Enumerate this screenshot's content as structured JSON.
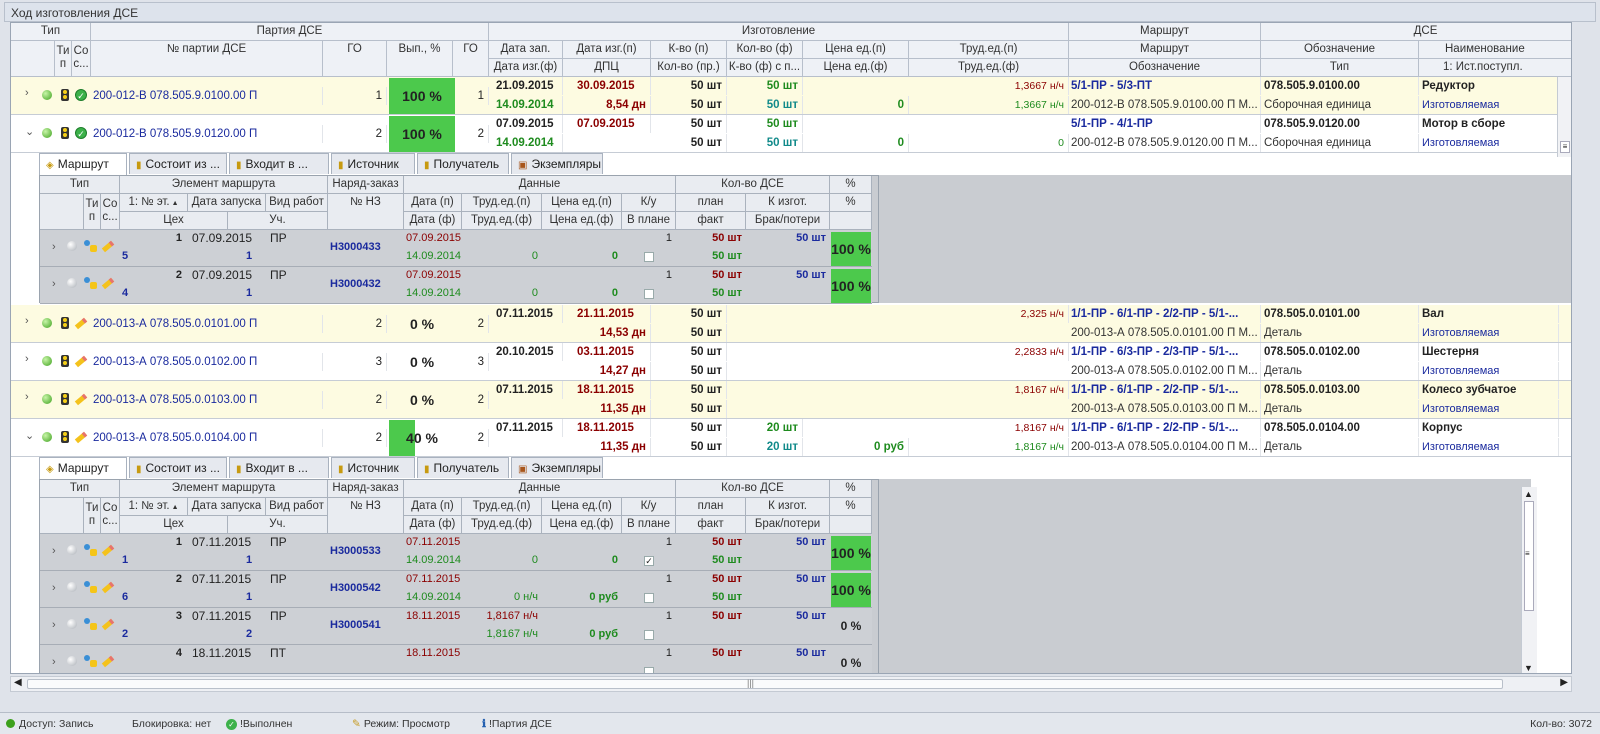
{
  "window": {
    "title": "Ход изготовления ДСЕ"
  },
  "header": {
    "groups": {
      "tip": "Тип",
      "partiya": "Партия ДСЕ",
      "izgotovlenie": "Изготовление",
      "marshrut": "Маршрут",
      "dse": "ДСЕ"
    },
    "cols": {
      "tip_p": "Ти п",
      "sost": "Со с...",
      "nomer": "№ партии ДСЕ",
      "go": "ГО",
      "vyp": "Вып., %",
      "go2": "ГО",
      "data_zap": "Дата зап.",
      "data_izg_p": "Дата изг.(п)",
      "kvo_p": "К-во (п)",
      "kvo_f": "Кол-во (ф)",
      "cena_p": "Цена ед.(п)",
      "trud_p": "Труд.ед.(п)",
      "marshrut": "Маршрут",
      "oboz": "Обозначение",
      "naim": "Наименование",
      "data_izg_f": "Дата изг.(ф)",
      "dpc": "ДПЦ",
      "kvo_pr": "Кол-во (пр.)",
      "kvo_fs": "К-во (ф) с п...",
      "cena_f": "Цена ед.(ф)",
      "trud_f": "Труд.ед.(ф)",
      "oboz2": "Обозначение",
      "tip2": "Тип",
      "ist": "1: Ист.поступл."
    }
  },
  "rows": [
    {
      "num": "200-012-В 078.505.9.0100.00 П",
      "go": "1",
      "pct": 100,
      "pct_label": "100 %",
      "go2": "1",
      "data_zap": "21.09.2015",
      "data_izg": "30.09.2015",
      "kvo_p": "50 шт",
      "kvo_f": "50 шт",
      "cena_p": "",
      "trud_p": "1,3667 н/ч",
      "route": "5/1-ПР - 5/3-ПТ",
      "oboz": "078.505.9.0100.00",
      "naim": "Редуктор",
      "data_izg_f": "14.09.2014",
      "dpc": "8,54 дн",
      "kvo_pr": "50 шт",
      "kvo_fs": "50 шт",
      "cena_f": "0",
      "trud_f": "1,3667 н/ч",
      "oboz2": "200-012-В 078.505.9.0100.00 П М...",
      "tip2": "Сборочная единица",
      "ist": "Изготовляемая",
      "icon": "done-check-icon",
      "expanded": false
    },
    {
      "num": "200-012-В 078.505.9.0120.00 П",
      "go": "2",
      "pct": 100,
      "pct_label": "100 %",
      "go2": "2",
      "data_zap": "07.09.2015",
      "data_izg": "07.09.2015",
      "kvo_p": "50 шт",
      "kvo_f": "50 шт",
      "cena_p": "",
      "trud_p": "",
      "route": "5/1-ПР - 4/1-ПР",
      "oboz": "078.505.9.0120.00",
      "naim": "Мотор в сборе",
      "data_izg_f": "14.09.2014",
      "dpc": "",
      "kvo_pr": "50 шт",
      "kvo_fs": "50 шт",
      "cena_f": "0",
      "trud_f": "0",
      "oboz2": "200-012-В 078.505.9.0120.00 П М...",
      "tip2": "Сборочная единица",
      "ist": "Изготовляемая",
      "icon": "done-check-icon",
      "expanded": true
    },
    {
      "num": "200-013-А 078.505.0.0101.00 П",
      "go": "2",
      "pct": 0,
      "pct_label": "0 %",
      "go2": "2",
      "data_zap": "07.11.2015",
      "data_izg": "21.11.2015",
      "kvo_p": "50 шт",
      "kvo_f": "",
      "cena_p": "",
      "trud_p": "2,325 н/ч",
      "route": "1/1-ПР - 6/1-ПР - 2/2-ПР - 5/1-...",
      "oboz": "078.505.0.0101.00",
      "naim": "Вал",
      "data_izg_f": "",
      "dpc": "14,53 дн",
      "kvo_pr": "50 шт",
      "kvo_fs": "",
      "cena_f": "",
      "trud_f": "",
      "oboz2": "200-013-А 078.505.0.0101.00 П М...",
      "tip2": "Деталь",
      "ist": "Изготовляемая",
      "icon": "pencil-icon",
      "expanded": false
    },
    {
      "num": "200-013-А 078.505.0.0102.00 П",
      "go": "3",
      "pct": 0,
      "pct_label": "0 %",
      "go2": "3",
      "data_zap": "20.10.2015",
      "data_izg": "03.11.2015",
      "kvo_p": "50 шт",
      "kvo_f": "",
      "cena_p": "",
      "trud_p": "2,2833 н/ч",
      "route": "1/1-ПР - 6/3-ПР - 2/3-ПР - 5/1-...",
      "oboz": "078.505.0.0102.00",
      "naim": "Шестерня",
      "data_izg_f": "",
      "dpc": "14,27 дн",
      "kvo_pr": "50 шт",
      "kvo_fs": "",
      "cena_f": "",
      "trud_f": "",
      "oboz2": "200-013-А 078.505.0.0102.00 П М...",
      "tip2": "Деталь",
      "ist": "Изготовляемая",
      "icon": "pencil-icon",
      "expanded": false
    },
    {
      "num": "200-013-А 078.505.0.0103.00 П",
      "go": "2",
      "pct": 0,
      "pct_label": "0 %",
      "go2": "2",
      "data_zap": "07.11.2015",
      "data_izg": "18.11.2015",
      "kvo_p": "50 шт",
      "kvo_f": "",
      "cena_p": "",
      "trud_p": "1,8167 н/ч",
      "route": "1/1-ПР - 6/1-ПР - 2/2-ПР - 5/1-...",
      "oboz": "078.505.0.0103.00",
      "naim": "Колесо зубчатое",
      "data_izg_f": "",
      "dpc": "11,35 дн",
      "kvo_pr": "50 шт",
      "kvo_fs": "",
      "cena_f": "",
      "trud_f": "",
      "oboz2": "200-013-А 078.505.0.0103.00 П М...",
      "tip2": "Деталь",
      "ist": "Изготовляемая",
      "icon": "pencil-icon",
      "expanded": false
    },
    {
      "num": "200-013-А 078.505.0.0104.00 П",
      "go": "2",
      "pct": 40,
      "pct_label": "40 %",
      "go2": "2",
      "data_zap": "07.11.2015",
      "data_izg": "18.11.2015",
      "kvo_p": "50 шт",
      "kvo_f": "20 шт",
      "cena_p": "",
      "trud_p": "1,8167 н/ч",
      "route": "1/1-ПР - 6/1-ПР - 2/2-ПР - 5/1-...",
      "oboz": "078.505.0.0104.00",
      "naim": "Корпус",
      "data_izg_f": "",
      "dpc": "11,35 дн",
      "kvo_pr": "50 шт",
      "kvo_fs": "20 шт",
      "cena_f": "0 руб",
      "trud_f": "1,8167 н/ч",
      "oboz2": "200-013-А 078.505.0.0104.00 П М...",
      "tip2": "Деталь",
      "ist": "Изготовляемая",
      "icon": "pencil-icon",
      "expanded": true
    }
  ],
  "tabs": [
    "Маршрут",
    "Состоит из ...",
    "Входит в ...",
    "Источник",
    "Получатель",
    "Экземпляры"
  ],
  "sub_header": {
    "tip": "Тип",
    "element": "Элемент маршрута",
    "naryad": "Наряд-заказ",
    "dannye": "Данные",
    "kvo_dse": "Кол-во ДСЕ",
    "pct": "%",
    "ti": "Ти п",
    "so": "Со с...",
    "etap": "1: № эт.",
    "data_zap": "Дата запуска",
    "vid": "Вид работ",
    "nz": "№ НЗ",
    "data_p": "Дата (п)",
    "trud_p": "Труд.ед.(п)",
    "cena_p": "Цена ед.(п)",
    "ku": "К/у",
    "plan": "план",
    "k_izg": "К изгот.",
    "pct2": "%",
    "ceh": "Цех",
    "uch": "Уч.",
    "data_f": "Дата (ф)",
    "trud_f": "Труд.ед.(ф)",
    "cena_f": "Цена ед.(ф)",
    "v_plane": "В плане",
    "fakt": "факт",
    "brak": "Брак/потери"
  },
  "sub1": [
    {
      "etap": "1",
      "date": "07.09.2015",
      "vid": "ПР",
      "ceh": "5",
      "uch": "1",
      "nz": "Н3000433",
      "data_p": "07.09.2015",
      "data_f": "14.09.2014",
      "trud_p": "",
      "trud_f": "0",
      "cena_p": "",
      "cena_f": "0",
      "ku": "1",
      "checked": false,
      "plan": "50 шт",
      "fakt": "50 шт",
      "k_izg": "50 шт",
      "brak": "",
      "pct": 100,
      "pct_label": "100 %"
    },
    {
      "etap": "2",
      "date": "07.09.2015",
      "vid": "ПР",
      "ceh": "4",
      "uch": "1",
      "nz": "Н3000432",
      "data_p": "07.09.2015",
      "data_f": "14.09.2014",
      "trud_p": "",
      "trud_f": "0",
      "cena_p": "",
      "cena_f": "0",
      "ku": "1",
      "checked": false,
      "plan": "50 шт",
      "fakt": "50 шт",
      "k_izg": "50 шт",
      "brak": "",
      "pct": 100,
      "pct_label": "100 %"
    }
  ],
  "sub2": [
    {
      "etap": "1",
      "date": "07.11.2015",
      "vid": "ПР",
      "ceh": "1",
      "uch": "1",
      "nz": "Н3000533",
      "data_p": "07.11.2015",
      "data_f": "14.09.2014",
      "trud_p": "",
      "trud_f": "0",
      "cena_p": "",
      "cena_f": "0",
      "ku": "1",
      "checked": true,
      "plan": "50 шт",
      "fakt": "50 шт",
      "k_izg": "50 шт",
      "brak": "",
      "pct": 100,
      "pct_label": "100 %"
    },
    {
      "etap": "2",
      "date": "07.11.2015",
      "vid": "ПР",
      "ceh": "6",
      "uch": "1",
      "nz": "Н3000542",
      "data_p": "07.11.2015",
      "data_f": "14.09.2014",
      "trud_p": "",
      "trud_f": "0 н/ч",
      "cena_p": "",
      "cena_f": "0 руб",
      "ku": "1",
      "checked": false,
      "plan": "50 шт",
      "fakt": "50 шт",
      "k_izg": "50 шт",
      "brak": "",
      "pct": 100,
      "pct_label": "100 %"
    },
    {
      "etap": "3",
      "date": "07.11.2015",
      "vid": "ПР",
      "ceh": "2",
      "uch": "2",
      "nz": "Н3000541",
      "data_p": "18.11.2015",
      "data_f": "",
      "trud_p": "1,8167 н/ч",
      "trud_f": "1,8167 н/ч",
      "cena_p": "",
      "cena_f": "0 руб",
      "ku": "1",
      "checked": false,
      "plan": "50 шт",
      "fakt": "",
      "k_izg": "50 шт",
      "brak": "",
      "pct": 0,
      "pct_label": "0 %"
    },
    {
      "etap": "4",
      "date": "18.11.2015",
      "vid": "ПТ",
      "ceh": "",
      "uch": "",
      "nz": "",
      "data_p": "18.11.2015",
      "data_f": "",
      "trud_p": "",
      "trud_f": "",
      "cena_p": "",
      "cena_f": "",
      "ku": "1",
      "checked": false,
      "plan": "50 шт",
      "fakt": "",
      "k_izg": "50 шт",
      "brak": "",
      "pct": 0,
      "pct_label": "0 %"
    }
  ],
  "status": {
    "access": "Доступ: Запись",
    "lock": "Блокировка: нет",
    "done": "!Выполнен",
    "mode": "Режим: Просмотр",
    "partiya": "!Партия ДСЕ",
    "count": "Кол-во: 3072"
  },
  "colors": {
    "accent_green": "#4cc94c",
    "row_yellow": "#fdfbe1",
    "date_red": "#8b0000",
    "date_green": "#1e8b1e",
    "link_blue": "#1a2a9e"
  }
}
